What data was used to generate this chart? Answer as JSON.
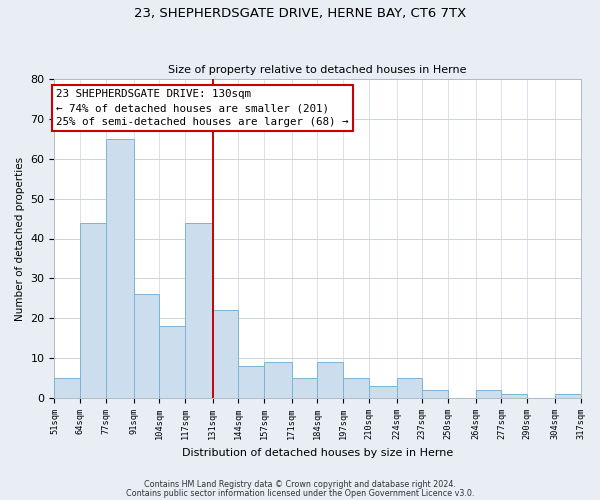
{
  "title": "23, SHEPHERDSGATE DRIVE, HERNE BAY, CT6 7TX",
  "subtitle": "Size of property relative to detached houses in Herne",
  "xlabel": "Distribution of detached houses by size in Herne",
  "ylabel": "Number of detached properties",
  "bar_edges": [
    51,
    64,
    77,
    91,
    104,
    117,
    131,
    144,
    157,
    171,
    184,
    197,
    210,
    224,
    237,
    250,
    264,
    277,
    290,
    304,
    317
  ],
  "bar_heights": [
    5,
    44,
    65,
    26,
    18,
    44,
    22,
    8,
    9,
    5,
    9,
    5,
    3,
    5,
    2,
    0,
    2,
    1,
    0,
    1
  ],
  "bar_color": "#ccdded",
  "bar_edge_color": "#7bb4d4",
  "property_line_x": 131,
  "property_line_color": "#cc0000",
  "ylim": [
    0,
    80
  ],
  "yticks": [
    0,
    10,
    20,
    30,
    40,
    50,
    60,
    70,
    80
  ],
  "annotation_title": "23 SHEPHERDSGATE DRIVE: 130sqm",
  "annotation_line1": "← 74% of detached houses are smaller (201)",
  "annotation_line2": "25% of semi-detached houses are larger (68) →",
  "annotation_box_facecolor": "#ffffff",
  "annotation_box_edgecolor": "#cc0000",
  "footnote1": "Contains HM Land Registry data © Crown copyright and database right 2024.",
  "footnote2": "Contains public sector information licensed under the Open Government Licence v3.0.",
  "bg_color": "#e8eef4",
  "plot_bg_color": "#ffffff",
  "grid_color": "#c8d4de"
}
